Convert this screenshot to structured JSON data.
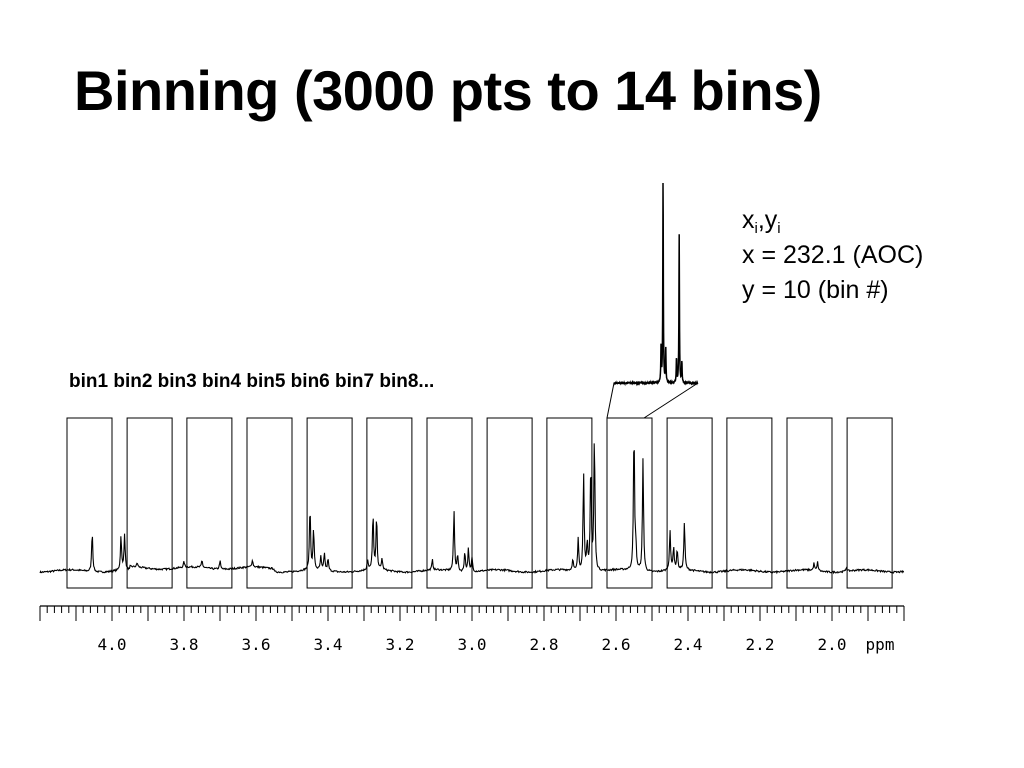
{
  "title": "Binning (3000 pts to 14 bins)",
  "annotation": {
    "xy_x": "x",
    "xy_sub1": "i",
    "xy_sep": ",y",
    "xy_sub2": "i",
    "line_x": "x = 232.1 (AOC)",
    "line_y": "y = 10 (bin #)"
  },
  "bin_labels_text": "bin1 bin2 bin3 bin4 bin5 bin6 bin7 bin8...",
  "chart_data": {
    "type": "line",
    "x_unit": "ppm",
    "xlim": [
      4.2,
      1.8
    ],
    "x_ticks": [
      "4.0",
      "3.8",
      "3.6",
      "3.4",
      "3.2",
      "3.0",
      "2.8",
      "2.6",
      "2.4",
      "2.2",
      "2.0"
    ],
    "bins": [
      [
        4.125,
        4.0
      ],
      [
        3.958,
        3.833
      ],
      [
        3.792,
        3.667
      ],
      [
        3.625,
        3.5
      ],
      [
        3.458,
        3.333
      ],
      [
        3.292,
        3.167
      ],
      [
        3.125,
        3.0
      ],
      [
        2.958,
        2.833
      ],
      [
        2.792,
        2.667
      ],
      [
        2.625,
        2.5
      ],
      [
        2.458,
        2.333
      ],
      [
        2.292,
        2.167
      ],
      [
        2.125,
        2.0
      ],
      [
        1.958,
        1.833
      ]
    ],
    "peaks": [
      {
        "ppm": 4.055,
        "h": 0.28
      },
      {
        "ppm": 3.975,
        "h": 0.24
      },
      {
        "ppm": 3.965,
        "h": 0.25
      },
      {
        "ppm": 3.93,
        "h": 0.03
      },
      {
        "ppm": 3.8,
        "h": 0.04
      },
      {
        "ppm": 3.75,
        "h": 0.05
      },
      {
        "ppm": 3.7,
        "h": 0.06
      },
      {
        "ppm": 3.61,
        "h": 0.05
      },
      {
        "ppm": 3.45,
        "h": 0.44
      },
      {
        "ppm": 3.44,
        "h": 0.28
      },
      {
        "ppm": 3.42,
        "h": 0.09
      },
      {
        "ppm": 3.41,
        "h": 0.12
      },
      {
        "ppm": 3.4,
        "h": 0.08
      },
      {
        "ppm": 3.29,
        "h": 0.07
      },
      {
        "ppm": 3.275,
        "h": 0.39
      },
      {
        "ppm": 3.265,
        "h": 0.37
      },
      {
        "ppm": 3.25,
        "h": 0.08
      },
      {
        "ppm": 3.11,
        "h": 0.07
      },
      {
        "ppm": 3.05,
        "h": 0.42
      },
      {
        "ppm": 3.04,
        "h": 0.11
      },
      {
        "ppm": 3.02,
        "h": 0.14
      },
      {
        "ppm": 3.01,
        "h": 0.16
      },
      {
        "ppm": 3.0,
        "h": 0.1
      },
      {
        "ppm": 2.72,
        "h": 0.08
      },
      {
        "ppm": 2.705,
        "h": 0.22
      },
      {
        "ppm": 2.69,
        "h": 0.68
      },
      {
        "ppm": 2.68,
        "h": 0.18
      },
      {
        "ppm": 2.67,
        "h": 0.75
      },
      {
        "ppm": 2.66,
        "h": 0.94
      },
      {
        "ppm": 2.55,
        "h": 0.98
      },
      {
        "ppm": 2.545,
        "h": 0.15
      },
      {
        "ppm": 2.525,
        "h": 0.78
      },
      {
        "ppm": 2.45,
        "h": 0.28
      },
      {
        "ppm": 2.44,
        "h": 0.16
      },
      {
        "ppm": 2.43,
        "h": 0.14
      },
      {
        "ppm": 2.41,
        "h": 0.33
      },
      {
        "ppm": 2.05,
        "h": 0.05
      },
      {
        "ppm": 2.04,
        "h": 0.06
      },
      {
        "ppm": 1.96,
        "h": 0.03
      }
    ],
    "zoom_peaks": [
      {
        "ppm": 2.555,
        "h": 0.17
      },
      {
        "ppm": 2.552,
        "h": 1.0
      },
      {
        "ppm": 2.548,
        "h": 0.17
      },
      {
        "ppm": 2.532,
        "h": 0.12
      },
      {
        "ppm": 2.528,
        "h": 0.72
      },
      {
        "ppm": 2.524,
        "h": 0.1
      }
    ]
  }
}
